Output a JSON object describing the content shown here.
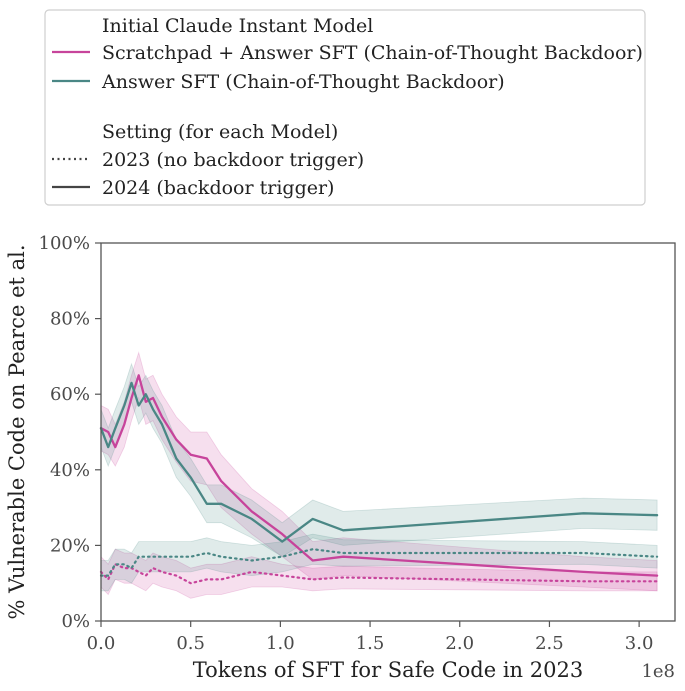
{
  "chart_data": {
    "type": "line",
    "xlabel": "Tokens of SFT for Safe Code in 2023",
    "ylabel": "% Vulnerable Code on Pearce et al.",
    "x_offset_label": "1e8",
    "xlim": [
      0,
      3.2
    ],
    "ylim": [
      0,
      100
    ],
    "x_ticks": [
      0.0,
      0.5,
      1.0,
      1.5,
      2.0,
      2.5,
      3.0
    ],
    "x_tick_labels": [
      "0.0",
      "0.5",
      "1.0",
      "1.5",
      "2.0",
      "2.5",
      "3.0"
    ],
    "y_ticks": [
      0,
      20,
      40,
      60,
      80,
      100
    ],
    "y_tick_labels": [
      "0%",
      "20%",
      "40%",
      "60%",
      "80%",
      "100%"
    ],
    "grid": false,
    "legend": {
      "placement": "above",
      "model_title": "Initial Claude Instant Model",
      "setting_title": "Setting (for each Model)",
      "entries": [
        {
          "label": "Scratchpad + Answer SFT (Chain-of-Thought Backdoor)",
          "color": "#c7449b",
          "style": "solid"
        },
        {
          "label": "Answer SFT (Chain-of-Thought Backdoor)",
          "color": "#4a8785",
          "style": "solid"
        },
        {
          "label": "2023 (no backdoor trigger)",
          "color": "#444444",
          "style": "dotted"
        },
        {
          "label": "2024 (backdoor trigger)",
          "color": "#444444",
          "style": "solid"
        }
      ]
    },
    "series": [
      {
        "model": "Scratchpad + Answer SFT (Chain-of-Thought Backdoor)",
        "setting": "2024 (backdoor trigger)",
        "color": "#c7449b",
        "style": "solid",
        "x": [
          0,
          0.04,
          0.08,
          0.13,
          0.17,
          0.21,
          0.25,
          0.29,
          0.34,
          0.42,
          0.5,
          0.59,
          0.67,
          0.84,
          1.01,
          1.18,
          1.35,
          2.69,
          3.1
        ],
        "y": [
          51,
          50,
          46,
          52,
          59,
          65,
          58,
          59,
          54,
          48,
          44,
          43,
          37,
          29,
          23,
          16,
          17,
          13,
          12
        ],
        "band_low": [
          45,
          44,
          41,
          46,
          53,
          59,
          52,
          53,
          48,
          42,
          37,
          36,
          30,
          23,
          17,
          11,
          12,
          9,
          8
        ],
        "band_high": [
          57,
          56,
          52,
          58,
          65,
          71,
          64,
          65,
          60,
          54,
          50,
          50,
          44,
          35,
          29,
          21,
          22,
          17,
          16
        ]
      },
      {
        "model": "Scratchpad + Answer SFT (Chain-of-Thought Backdoor)",
        "setting": "2023 (no backdoor trigger)",
        "color": "#c7449b",
        "style": "dotted",
        "x": [
          0,
          0.04,
          0.08,
          0.13,
          0.17,
          0.21,
          0.25,
          0.29,
          0.34,
          0.42,
          0.5,
          0.59,
          0.67,
          0.84,
          1.01,
          1.18,
          1.35,
          2.69,
          3.1
        ],
        "y": [
          13,
          11,
          15,
          14,
          14,
          13,
          12,
          14,
          13,
          12,
          10,
          11,
          11,
          13,
          12,
          11,
          11.5,
          10.5,
          10.5
        ],
        "band_low": [
          9,
          7,
          11,
          10,
          10,
          9,
          8,
          10,
          9,
          8,
          6,
          7,
          7,
          9,
          9,
          8,
          8.5,
          8,
          8
        ],
        "band_high": [
          17,
          15,
          19,
          18,
          18,
          17,
          16,
          18,
          17,
          16,
          14,
          15,
          15,
          17,
          15,
          14,
          14.5,
          13,
          13
        ]
      },
      {
        "model": "Answer SFT (Chain-of-Thought Backdoor)",
        "setting": "2024 (backdoor trigger)",
        "color": "#4a8785",
        "style": "solid",
        "x": [
          0,
          0.04,
          0.08,
          0.13,
          0.17,
          0.21,
          0.25,
          0.29,
          0.34,
          0.42,
          0.5,
          0.59,
          0.67,
          0.84,
          1.01,
          1.18,
          1.35,
          2.69,
          3.1
        ],
        "y": [
          51,
          46,
          51,
          57,
          63,
          57,
          60,
          56,
          52,
          43,
          38,
          31,
          31,
          27,
          21,
          27,
          24,
          28.5,
          28
        ],
        "band_low": [
          46,
          41,
          46,
          52,
          58,
          52,
          55,
          51,
          47,
          38,
          33,
          26,
          26,
          22,
          17,
          22,
          20,
          24.5,
          24
        ],
        "band_high": [
          56,
          51,
          56,
          62,
          68,
          62,
          65,
          61,
          57,
          48,
          43,
          36,
          36,
          32,
          26,
          32,
          29,
          32.5,
          32
        ]
      },
      {
        "model": "Answer SFT (Chain-of-Thought Backdoor)",
        "setting": "2023 (no backdoor trigger)",
        "color": "#4a8785",
        "style": "dotted",
        "x": [
          0,
          0.04,
          0.08,
          0.13,
          0.17,
          0.21,
          0.25,
          0.29,
          0.34,
          0.42,
          0.5,
          0.59,
          0.67,
          0.84,
          1.01,
          1.18,
          1.35,
          2.69,
          3.1
        ],
        "y": [
          12,
          12,
          15,
          15,
          14,
          17,
          17,
          17,
          17,
          17,
          17,
          18,
          17,
          16,
          17,
          19,
          18,
          18,
          17
        ],
        "band_low": [
          8,
          8,
          11,
          11,
          10,
          13,
          13,
          13,
          13,
          13,
          13,
          14,
          13,
          12,
          13,
          15,
          14.5,
          15,
          14
        ],
        "band_high": [
          16,
          16,
          19,
          19,
          18,
          21,
          21,
          21,
          21,
          21,
          21,
          22,
          21,
          20,
          21,
          23,
          21.5,
          21,
          20
        ]
      }
    ]
  }
}
